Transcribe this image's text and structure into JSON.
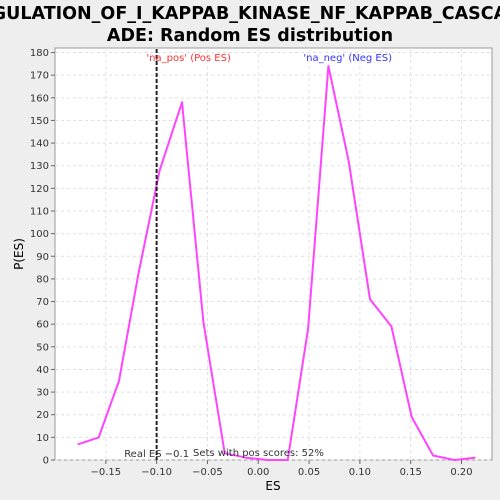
{
  "chart_data": {
    "type": "line",
    "title_lines": [
      "REGULATION_OF_I_KAPPAB_KINASE_NF_KAPPAB_CASCADE",
      "ADE: Random ES distribution"
    ],
    "xlabel": "ES",
    "ylabel": "P(ES)",
    "xlim": [
      -0.2,
      0.23
    ],
    "ylim": [
      0,
      182
    ],
    "x_ticks": [
      -0.15,
      -0.1,
      -0.05,
      0.0,
      0.05,
      0.1,
      0.15,
      0.2
    ],
    "x_tick_labels": [
      "−0.15",
      "−0.10",
      "−0.05",
      "0.00",
      "0.05",
      "0.10",
      "0.15",
      "0.20"
    ],
    "y_ticks": [
      0,
      10,
      20,
      30,
      40,
      50,
      60,
      70,
      80,
      90,
      100,
      110,
      120,
      130,
      140,
      150,
      160,
      170,
      180
    ],
    "grid": true,
    "series_color": "#ff44ff",
    "series": [
      {
        "x": [
          -0.177,
          -0.157,
          -0.137,
          -0.118,
          -0.097,
          -0.075,
          -0.054,
          -0.033,
          -0.012,
          0.009,
          0.029,
          0.049,
          0.069,
          0.089,
          0.11,
          0.131,
          0.151,
          0.172,
          0.193,
          0.213
        ],
        "values": [
          7,
          10,
          35,
          82,
          128,
          158,
          61,
          3,
          1,
          0,
          0,
          58,
          174,
          132,
          71,
          59,
          19,
          2,
          0,
          1
        ]
      }
    ],
    "annotations": {
      "pos_label": "'na_pos' (Pos ES)",
      "pos_x": -0.1,
      "neg_label": "'na_neg' (Neg ES)",
      "neg_x": 0.088,
      "real_es_label": "Real ES −0.1",
      "real_es_value": -0.1,
      "pos_scores_label": "Sets with pos scores: 52%",
      "pos_color": "#ff3333",
      "neg_color": "#3333ff"
    }
  }
}
